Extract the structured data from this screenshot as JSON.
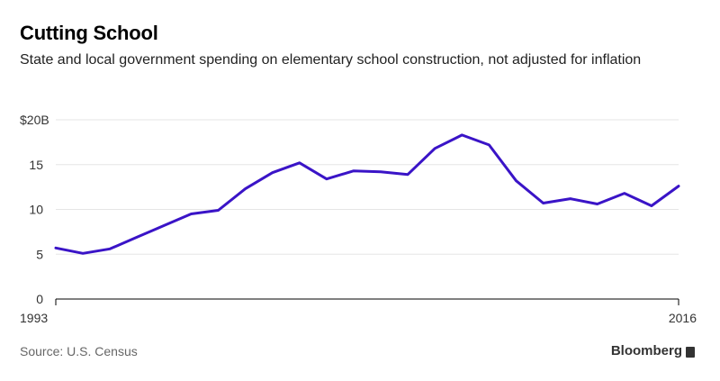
{
  "title": "Cutting School",
  "subtitle": "State and local government spending on elementary school construction, not adjusted for inflation",
  "source": "Source: U.S. Census",
  "brand": "Bloomberg",
  "colors": {
    "line": "#3a14c7",
    "grid": "#e5e5e5",
    "axis": "#000000"
  },
  "chart_data": {
    "type": "line",
    "title": "Cutting School",
    "subtitle": "State and local government spending on elementary school construction, not adjusted for inflation",
    "xlabel": "",
    "ylabel": "",
    "x": [
      1993,
      1994,
      1995,
      1996,
      1997,
      1998,
      1999,
      2000,
      2001,
      2002,
      2003,
      2004,
      2005,
      2006,
      2007,
      2008,
      2009,
      2010,
      2011,
      2012,
      2013,
      2014,
      2015,
      2016
    ],
    "series": [
      {
        "values": [
          5.7,
          5.1,
          5.6,
          6.9,
          8.2,
          9.5,
          9.9,
          12.3,
          14.1,
          15.2,
          13.4,
          14.3,
          14.2,
          13.9,
          16.8,
          18.3,
          17.2,
          13.2,
          10.7,
          11.2,
          10.6,
          11.8,
          10.4,
          12.6
        ]
      }
    ],
    "ylim": [
      0,
      20
    ],
    "xlim": [
      1993,
      2016
    ],
    "yticks": [
      {
        "value": 20,
        "label": "$20B"
      },
      {
        "value": 15,
        "label": "15"
      },
      {
        "value": 10,
        "label": "10"
      },
      {
        "value": 5,
        "label": "5"
      },
      {
        "value": 0,
        "label": "0"
      }
    ],
    "xticks": [
      {
        "value": 1993,
        "label": "1993"
      },
      {
        "value": 2016,
        "label": "2016"
      }
    ],
    "grid": true
  }
}
